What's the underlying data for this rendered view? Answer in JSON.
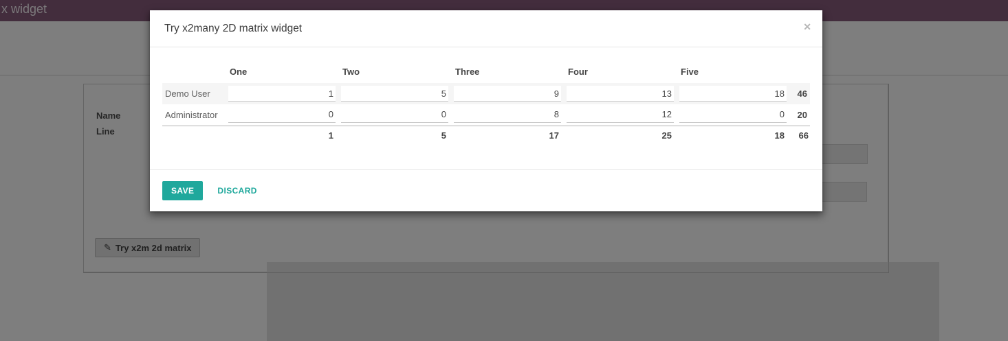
{
  "colors": {
    "accent": "#1fa89c",
    "topbar": "#875a7b"
  },
  "page_behind": {
    "topbar_title": "x widget",
    "form": {
      "name_label": "Name",
      "line_label": "Line",
      "matrix_button_label": "Try x2m 2d matrix",
      "matrix_button_icon": "✎"
    }
  },
  "modal": {
    "title": "Try x2many 2D matrix widget",
    "close_icon": "✕",
    "matrix": {
      "columns": [
        "One",
        "Two",
        "Three",
        "Four",
        "Five"
      ],
      "rows": [
        {
          "label": "Demo User",
          "values": [
            "1",
            "5",
            "9",
            "13",
            "18"
          ],
          "total": "46"
        },
        {
          "label": "Administrator",
          "values": [
            "0",
            "0",
            "8",
            "12",
            "0"
          ],
          "total": "20"
        }
      ],
      "column_totals": [
        "1",
        "5",
        "17",
        "25",
        "18"
      ],
      "grand_total": "66"
    },
    "footer": {
      "save_label": "SAVE",
      "discard_label": "DISCARD"
    }
  }
}
